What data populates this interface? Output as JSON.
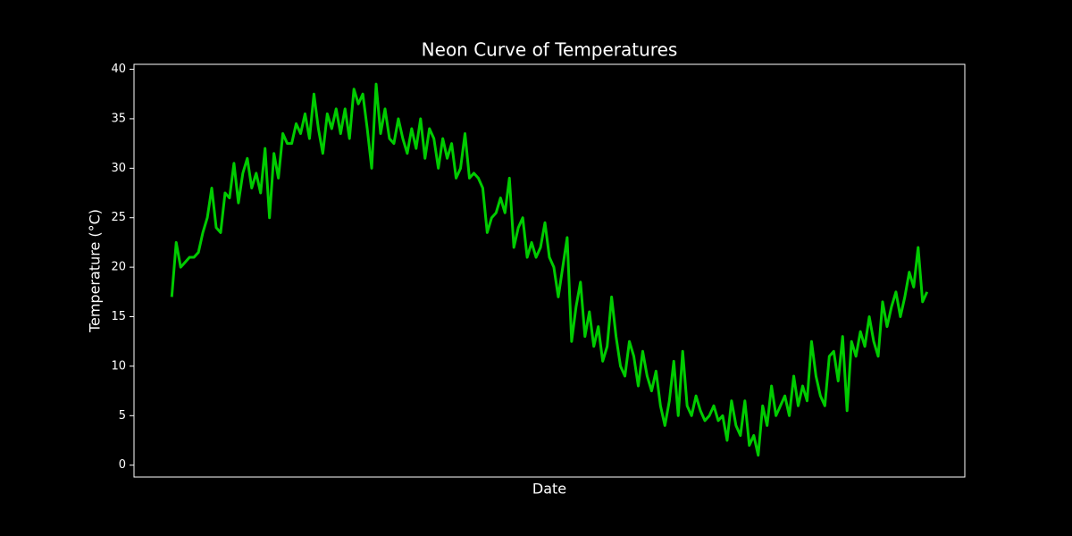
{
  "chart_data": {
    "type": "line",
    "title": "Neon Curve of Temperatures",
    "xlabel": "Date",
    "ylabel": "Temperature (°C)",
    "color": "#00cc00",
    "values": [
      17,
      22.5,
      20,
      20.5,
      21,
      21,
      21.5,
      23.5,
      25,
      28,
      24,
      23.5,
      27.5,
      27,
      30.5,
      26.5,
      29.5,
      31,
      28,
      29.5,
      27.5,
      32,
      25,
      31.5,
      29,
      33.5,
      32.5,
      32.5,
      34.5,
      33.5,
      35.5,
      33,
      37.5,
      34,
      31.5,
      35.5,
      34,
      36,
      33.5,
      36,
      33,
      38,
      36.5,
      37.5,
      34,
      30,
      38.5,
      33.5,
      36,
      33,
      32.5,
      35,
      33,
      31.5,
      34,
      32,
      35,
      31,
      34,
      33,
      30,
      33,
      31,
      32.5,
      29,
      30,
      33.5,
      29,
      29.5,
      29,
      28,
      23.5,
      25,
      25.5,
      27,
      25.5,
      29,
      22,
      24,
      25,
      21,
      22.5,
      21,
      22,
      24.5,
      21,
      20,
      17,
      20,
      23,
      12.5,
      16,
      18.5,
      13,
      15.5,
      12,
      14,
      10.5,
      12,
      17,
      13,
      10,
      9,
      12.5,
      11,
      8,
      11.5,
      9,
      7.5,
      9.5,
      6,
      4,
      6.5,
      10.5,
      5,
      11.5,
      6,
      5,
      7,
      5.5,
      4.5,
      5,
      6,
      4.5,
      5,
      2.5,
      6.5,
      4,
      3,
      6.5,
      2,
      3,
      1,
      6,
      4,
      8,
      5,
      6,
      7,
      5,
      9,
      6,
      8,
      6.5,
      12.5,
      9,
      7,
      6,
      11,
      11.5,
      8.5,
      13,
      5.5,
      12.5,
      11,
      13.5,
      12,
      15,
      12.5,
      11,
      16.5,
      14,
      16,
      17.5,
      15,
      17,
      19.5,
      18,
      22,
      16.5,
      17.5
    ],
    "ylim": [
      -1.2,
      40.5
    ],
    "yticks": [
      0,
      5,
      10,
      15,
      20,
      25,
      30,
      35,
      40
    ]
  }
}
